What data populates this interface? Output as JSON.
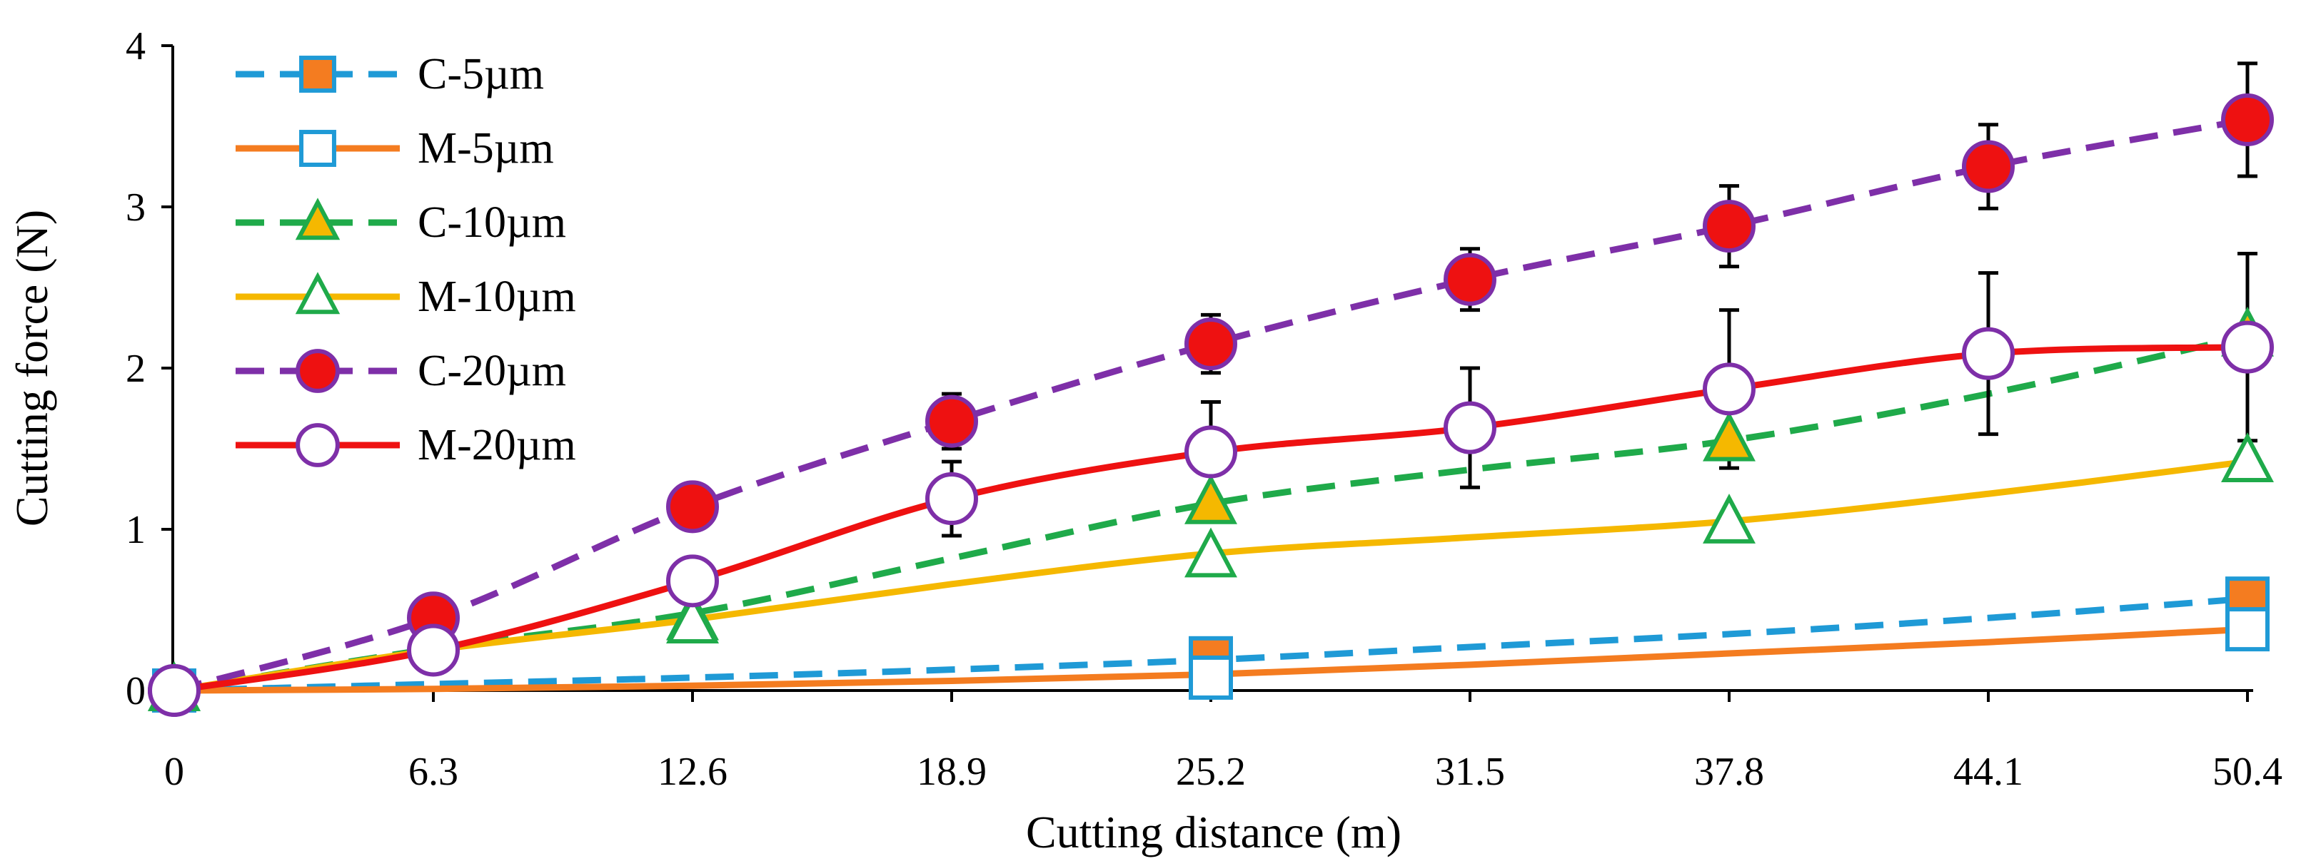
{
  "chart_data": {
    "type": "line",
    "title": "",
    "xlabel": "Cutting distance (m)",
    "ylabel": "Cutting force (N)",
    "categories": [
      "0",
      "6.3",
      "12.6",
      "18.9",
      "25.2",
      "31.5",
      "37.8",
      "44.1",
      "50.4"
    ],
    "ylim": [
      0,
      4
    ],
    "yticks": [
      0,
      1,
      2,
      3,
      4
    ],
    "grid": false,
    "legend_position": "top-left",
    "series": [
      {
        "name": "C-5µm",
        "line_color": "#1f9ad6",
        "dashed": true,
        "marker": "square",
        "marker_fill": "#f47c20",
        "marker_stroke": "#1f9ad6",
        "x": [
          0,
          25.2,
          50.4
        ],
        "values": [
          0,
          0.2,
          0.57
        ],
        "curve_values": [
          0,
          0.04,
          0.08,
          0.13,
          0.19,
          0.27,
          0.35,
          0.45,
          0.57
        ]
      },
      {
        "name": "M-5µm",
        "line_color": "#f47c20",
        "dashed": false,
        "marker": "square",
        "marker_fill": "#ffffff",
        "marker_stroke": "#1f9ad6",
        "x": [
          0,
          25.2,
          50.4
        ],
        "values": [
          0,
          0.08,
          0.38
        ],
        "curve_values": [
          0,
          0.01,
          0.03,
          0.06,
          0.1,
          0.16,
          0.23,
          0.3,
          0.38
        ]
      },
      {
        "name": "C-10µm",
        "line_color": "#1faa4a",
        "dashed": true,
        "marker": "triangle",
        "marker_fill": "#f5b800",
        "marker_stroke": "#1faa4a",
        "x": [
          0,
          12.6,
          25.2,
          37.8,
          50.4
        ],
        "values": [
          0,
          0.44,
          1.16,
          1.55,
          2.2
        ],
        "curve_values": [
          0,
          0.26,
          0.48,
          0.82,
          1.16,
          1.37,
          1.55,
          1.84,
          2.2
        ]
      },
      {
        "name": "M-10µm",
        "line_color": "#f5b800",
        "dashed": false,
        "marker": "triangle",
        "marker_fill": "#ffffff",
        "marker_stroke": "#1faa4a",
        "x": [
          0,
          12.6,
          25.2,
          37.8,
          50.4
        ],
        "values": [
          0,
          0.42,
          0.83,
          1.04,
          1.42
        ],
        "curve_values": [
          0,
          0.25,
          0.44,
          0.66,
          0.85,
          0.95,
          1.05,
          1.22,
          1.42
        ]
      },
      {
        "name": "C-20µm",
        "line_color": "#7e2fa8",
        "dashed": true,
        "marker": "circle",
        "marker_fill": "#ee1111",
        "marker_stroke": "#7e2fa8",
        "x": [
          0,
          6.3,
          12.6,
          18.9,
          25.2,
          31.5,
          37.8,
          44.1,
          50.4
        ],
        "values": [
          0,
          0.45,
          1.14,
          1.67,
          2.15,
          2.55,
          2.88,
          3.25,
          3.54
        ],
        "error": [
          0,
          0.05,
          0.1,
          0.17,
          0.18,
          0.19,
          0.25,
          0.26,
          0.35
        ],
        "curve_values": [
          0,
          0.45,
          1.14,
          1.67,
          2.15,
          2.55,
          2.88,
          3.25,
          3.54
        ]
      },
      {
        "name": "M-20µm",
        "line_color": "#ee1111",
        "dashed": false,
        "marker": "circle",
        "marker_fill": "#ffffff",
        "marker_stroke": "#7e2fa8",
        "x": [
          0,
          6.3,
          12.6,
          18.9,
          25.2,
          31.5,
          37.8,
          44.1,
          50.4
        ],
        "values": [
          0,
          0.25,
          0.68,
          1.19,
          1.48,
          1.63,
          1.87,
          2.09,
          2.13
        ],
        "error": [
          0,
          0.04,
          0.14,
          0.23,
          0.31,
          0.37,
          0.49,
          0.5,
          0.58
        ],
        "curve_values": [
          0,
          0.25,
          0.68,
          1.19,
          1.48,
          1.63,
          1.87,
          2.09,
          2.13
        ]
      }
    ]
  }
}
